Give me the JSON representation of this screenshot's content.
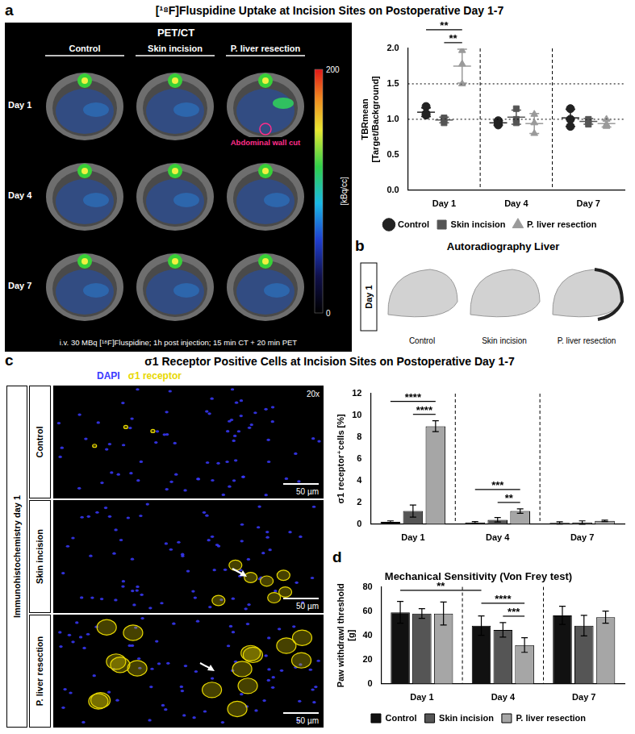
{
  "chart_data": [
    {
      "type": "scatter",
      "categories": [
        "Day 1",
        "Day 4",
        "Day 7"
      ],
      "ylabel": "TBRmean [Target/Background]",
      "ylim": [
        0,
        2
      ],
      "yticks": [
        {
          "value": 0,
          "label": "0.0"
        },
        {
          "value": 0.5,
          "label": "0.5"
        },
        {
          "value": 1,
          "label": "1.0"
        },
        {
          "value": 1.5,
          "label": "1.5"
        },
        {
          "value": 2,
          "label": "2.0"
        }
      ],
      "reference_lines": [
        1,
        1.5
      ],
      "grid": false,
      "legend": "bottom",
      "series": [
        {
          "name": "Control",
          "color": "#222222",
          "marker": "circle",
          "values": [
            [
              1.18,
              1.08,
              1.06
            ],
            [
              0.98,
              0.92,
              0.95
            ],
            [
              1.15,
              1.0,
              0.9
            ]
          ],
          "mean": [
            1.1,
            0.95,
            1.02
          ],
          "sd": [
            0.06,
            0.03,
            0.12
          ]
        },
        {
          "name": "Skin incision",
          "color": "#555555",
          "marker": "square",
          "values": [
            [
              1.02,
              0.95,
              1.0
            ],
            [
              1.15,
              1.0,
              0.95
            ],
            [
              1.0,
              0.97,
              0.93
            ]
          ],
          "mean": [
            0.99,
            1.03,
            0.97
          ],
          "sd": [
            0.04,
            0.1,
            0.04
          ]
        },
        {
          "name": "P. liver resection",
          "color": "#9a9a9a",
          "marker": "triangle",
          "values": [
            [
              1.97,
              1.78,
              1.5
            ],
            [
              1.07,
              0.95,
              0.8
            ],
            [
              1.0,
              0.93,
              0.9
            ]
          ],
          "mean": [
            1.75,
            0.94,
            0.94
          ],
          "sd": [
            0.24,
            0.14,
            0.05
          ]
        }
      ],
      "significance": [
        {
          "text": "**",
          "from": {
            "category": "Day 1",
            "series": "Skin incision"
          },
          "to": {
            "category": "Day 1",
            "series": "P. liver resection"
          }
        },
        {
          "text": "**",
          "from": {
            "category": "Day 1",
            "series": "Control"
          },
          "to": {
            "category": "Day 1",
            "series": "P. liver resection"
          }
        }
      ]
    },
    {
      "type": "bar",
      "categories": [
        "Day 1",
        "Day 4",
        "Day 7"
      ],
      "ylabel": "σ1 receptor⁺cells [%]",
      "ylim": [
        0,
        12
      ],
      "yticks": [
        0,
        2,
        4,
        6,
        8,
        10,
        12
      ],
      "grid": false,
      "series": [
        {
          "name": "Control",
          "color": "#111111",
          "values": [
            0.2,
            0.15,
            0.12
          ],
          "errors": [
            0.1,
            0.08,
            0.1
          ]
        },
        {
          "name": "Skin incision",
          "color": "#555555",
          "values": [
            1.2,
            0.4,
            0.15
          ],
          "errors": [
            0.55,
            0.2,
            0.15
          ]
        },
        {
          "name": "P. liver resection",
          "color": "#a6a6a6",
          "values": [
            9.0,
            1.2,
            0.3
          ],
          "errors": [
            0.5,
            0.2,
            0.06
          ]
        }
      ],
      "significance": [
        {
          "text": "****",
          "from": {
            "category": "Day 1",
            "series": "Skin incision"
          },
          "to": {
            "category": "Day 1",
            "series": "P. liver resection"
          }
        },
        {
          "text": "****",
          "from": {
            "category": "Day 1",
            "series": "Control"
          },
          "to": {
            "category": "Day 1",
            "series": "P. liver resection"
          }
        },
        {
          "text": "**",
          "from": {
            "category": "Day 4",
            "series": "Skin incision"
          },
          "to": {
            "category": "Day 4",
            "series": "P. liver resection"
          }
        },
        {
          "text": "***",
          "from": {
            "category": "Day 4",
            "series": "Control"
          },
          "to": {
            "category": "Day 4",
            "series": "P. liver resection"
          }
        }
      ]
    },
    {
      "type": "bar",
      "title": "Mechanical Sensitivity (Von Frey test)",
      "categories": [
        "Day 1",
        "Day 4",
        "Day 7"
      ],
      "ylabel": "Paw withdrawl threshold [g]",
      "ylim": [
        0,
        80
      ],
      "yticks": [
        0,
        20,
        40,
        60,
        80
      ],
      "grid": false,
      "legend": "bottom",
      "series": [
        {
          "name": "Control",
          "color": "#111111",
          "values": [
            59,
            48,
            56.5
          ],
          "errors": [
            9,
            8,
            7.5
          ]
        },
        {
          "name": "Skin incision",
          "color": "#555555",
          "values": [
            58,
            44.5,
            48
          ],
          "errors": [
            4,
            6,
            8.5
          ]
        },
        {
          "name": "P. liver resection",
          "color": "#a6a6a6",
          "values": [
            58,
            32,
            55
          ],
          "errors": [
            9.5,
            6,
            5
          ]
        }
      ],
      "significance": [
        {
          "text": "***",
          "from": {
            "category": "Day 4",
            "series": "Skin incision"
          },
          "to": {
            "category": "Day 4",
            "series": "P. liver resection"
          }
        },
        {
          "text": "****",
          "from": {
            "category": "Day 4",
            "series": "Control"
          },
          "to": {
            "category": "Day 4",
            "series": "P. liver resection"
          }
        },
        {
          "text": "**",
          "from": {
            "category": "Day 1",
            "series": "Control"
          },
          "to": {
            "category": "Day 4",
            "series": "Control"
          }
        }
      ]
    }
  ],
  "figure": {
    "panel_a": {
      "letter": "a",
      "title": "[¹⁸F]Fluspidine Uptake at Incision Sites on Postoperative Day 1-7",
      "image": {
        "heading": "PET/CT",
        "columns": [
          "Control",
          "Skin incision",
          "P. liver resection"
        ],
        "rows": [
          "Day 1",
          "Day 4",
          "Day 7"
        ],
        "annotation": "Abdominal wall cut",
        "caption": "i.v. 30 MBq [¹⁸F]Fluspidine; 1h post injection; 15 min CT + 20 min PET",
        "colorbar": {
          "label": "[kBq/cc]",
          "range": [
            0,
            200
          ],
          "ticks": [
            0,
            200
          ]
        }
      }
    },
    "panel_b": {
      "letter": "b",
      "title": "Autoradiography Liver",
      "row": "Day 1",
      "columns": [
        "Control",
        "Skin incision",
        "P. liver resection"
      ]
    },
    "panel_c": {
      "letter": "c",
      "title": "σ1 Receptor Positive Cells at Incision Sites on Postoperative Day 1-7",
      "image": {
        "stains": [
          {
            "name": "DAPI",
            "color": "#3a3aff"
          },
          {
            "name": "σ1 receptor",
            "color": "#e8d800"
          }
        ],
        "group": "Immunohistochemistry day 1",
        "rows": [
          "Control",
          "Skin incision",
          "P. liver resection"
        ],
        "magnification": "20x",
        "scale_bar": "50 µm"
      }
    },
    "panel_d": {
      "letter": "d"
    }
  }
}
